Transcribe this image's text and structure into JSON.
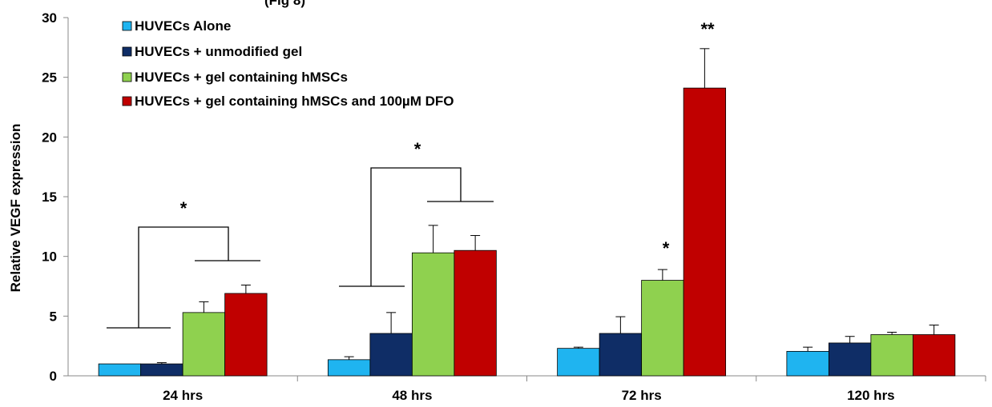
{
  "header_fragment": "(Fig 8)",
  "chart_data": {
    "type": "bar",
    "ylabel": "Relative VEGF expression",
    "xlabel": "",
    "ylim": [
      0,
      30
    ],
    "yticks": [
      "0",
      "5",
      "10",
      "15",
      "20",
      "25",
      "30"
    ],
    "categories": [
      "24 hrs",
      "48 hrs",
      "72 hrs",
      "120 hrs"
    ],
    "series": [
      {
        "name": "HUVECs Alone",
        "color": "#1fb4f0",
        "values": [
          1.0,
          1.35,
          2.3,
          2.05
        ],
        "errors": [
          0.0,
          0.25,
          0.1,
          0.35
        ]
      },
      {
        "name": "HUVECs + unmodified gel",
        "color": "#0f2d66",
        "values": [
          1.0,
          3.55,
          3.55,
          2.75
        ],
        "errors": [
          0.1,
          1.75,
          1.4,
          0.55
        ]
      },
      {
        "name": "HUVECs + gel containing hMSCs",
        "color": "#8fd14f",
        "values": [
          5.3,
          10.3,
          8.0,
          3.45
        ],
        "errors": [
          0.9,
          2.3,
          0.9,
          0.2
        ]
      },
      {
        "name": "HUVECs + gel containing hMSCs and 100µM DFO",
        "color": "#c00000",
        "values": [
          6.9,
          10.5,
          24.1,
          3.45
        ],
        "errors": [
          0.7,
          1.25,
          3.3,
          0.8
        ]
      }
    ],
    "legend_position": "top-left",
    "annotations": [
      {
        "text": "*",
        "category": "24 hrs"
      },
      {
        "text": "*",
        "category": "48 hrs"
      },
      {
        "text": "*",
        "category": "72 hrs"
      },
      {
        "text": "**",
        "category": "72 hrs"
      }
    ]
  }
}
